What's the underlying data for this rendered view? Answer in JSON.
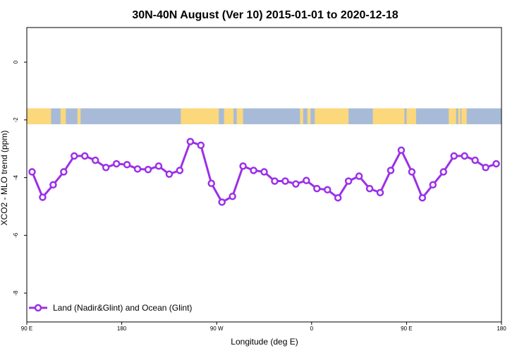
{
  "chart_data": {
    "type": "line",
    "title": "30N-40N August (Ver 10)   2015-01-01 to 2020-12-18",
    "xlabel": "Longitude (deg E)",
    "ylabel": "XCO2 - MLO trend (ppm)",
    "xlim": [
      90,
      540
    ],
    "ylim": [
      -9.0,
      1.2
    ],
    "x_ticks": [
      {
        "value": 90,
        "label": "90 E"
      },
      {
        "value": 180,
        "label": "180"
      },
      {
        "value": 270,
        "label": "90 W"
      },
      {
        "value": 360,
        "label": "0"
      },
      {
        "value": 450,
        "label": "90 E"
      },
      {
        "value": 540,
        "label": "180"
      }
    ],
    "y_ticks": [
      {
        "value": 0,
        "label": "0"
      },
      {
        "value": -2,
        "label": "-2"
      },
      {
        "value": -4,
        "label": "-4"
      },
      {
        "value": -6,
        "label": "-6"
      },
      {
        "value": -8,
        "label": "-8"
      }
    ],
    "grid": false,
    "legend_position": "bottom-left",
    "land_ocean_strip": {
      "y_range": [
        -2.15,
        -1.6
      ],
      "ocean_color": "#a7bbd9",
      "land_color": "#fbd87b",
      "land_spans": [
        [
          90,
          113
        ],
        [
          122,
          127
        ],
        [
          138,
          141
        ],
        [
          236,
          272
        ],
        [
          277,
          286
        ],
        [
          289,
          295
        ],
        [
          349,
          352
        ],
        [
          356,
          359
        ],
        [
          363,
          395
        ],
        [
          418,
          448
        ],
        [
          450,
          459
        ],
        [
          490,
          497
        ],
        [
          499,
          501
        ],
        [
          502,
          507
        ]
      ]
    },
    "series": [
      {
        "name": "Land (Nadir&Glint) and Ocean (Glint)",
        "color": "#9b30e8",
        "x": [
          95,
          105,
          115,
          125,
          135,
          145,
          155,
          165,
          175,
          185,
          195,
          205,
          215,
          225,
          235,
          245,
          255,
          265,
          275,
          285,
          295,
          305,
          315,
          325,
          335,
          345,
          355,
          365,
          375,
          385,
          395,
          405,
          415,
          425,
          435,
          445,
          455,
          465,
          475,
          485,
          495,
          505,
          515,
          525,
          535
        ],
        "y": [
          -3.8,
          -4.68,
          -4.25,
          -3.8,
          -3.25,
          -3.25,
          -3.4,
          -3.65,
          -3.52,
          -3.55,
          -3.7,
          -3.72,
          -3.6,
          -3.88,
          -3.75,
          -2.75,
          -2.88,
          -4.2,
          -4.85,
          -4.65,
          -3.6,
          -3.75,
          -3.8,
          -4.12,
          -4.12,
          -4.22,
          -4.1,
          -4.38,
          -4.42,
          -4.7,
          -4.12,
          -3.95,
          -4.38,
          -4.52,
          -3.75,
          -3.05,
          -3.8,
          -4.7,
          -4.25,
          -3.8,
          -3.25,
          -3.25,
          -3.4,
          -3.65,
          -3.52
        ]
      }
    ]
  }
}
